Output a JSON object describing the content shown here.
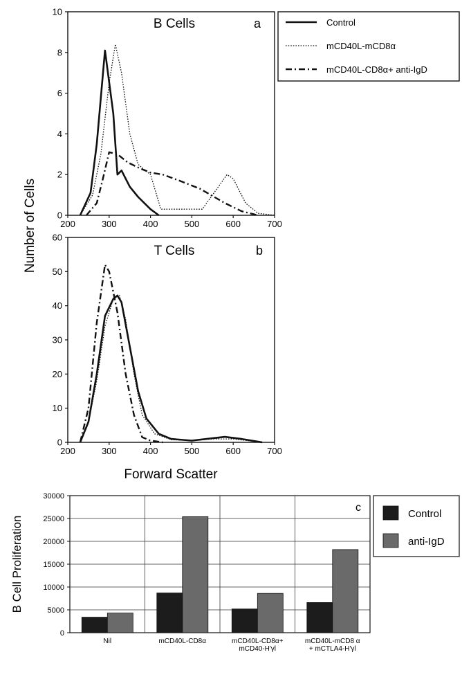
{
  "figure": {
    "shared_ylabel": "Number of Cells",
    "shared_xlabel": "Forward Scatter",
    "legend": {
      "control": "Control",
      "mcd40l_mcd8": "mCD40L-mCD8α",
      "mcd40l_cd8_antiigd": "mCD40L-CD8α+ anti-IgD"
    }
  },
  "chart_data": [
    {
      "type": "line",
      "title": "B Cells",
      "panel_letter": "a",
      "xlim": [
        200,
        700
      ],
      "ylim": [
        0,
        10
      ],
      "xticks": [
        "200",
        "300",
        "400",
        "500",
        "600",
        "700"
      ],
      "yticks": [
        "0",
        "2",
        "4",
        "6",
        "8",
        "10"
      ],
      "legend_position": "right",
      "series": [
        {
          "name": "Control",
          "style": "solid",
          "x": [
            230,
            255,
            270,
            290,
            310,
            320,
            330,
            350,
            370,
            400,
            420
          ],
          "y": [
            0,
            1.1,
            3.5,
            8.1,
            5.0,
            2.0,
            2.2,
            1.4,
            0.9,
            0.3,
            0
          ]
        },
        {
          "name": "mCD40L-mCD8α",
          "style": "dotted",
          "x": [
            230,
            260,
            280,
            300,
            315,
            330,
            350,
            370,
            400,
            425,
            450,
            500,
            525,
            550,
            585,
            600,
            630,
            660,
            700
          ],
          "y": [
            0,
            1.0,
            3.0,
            6.5,
            8.4,
            7.0,
            4.0,
            2.5,
            2.0,
            0.3,
            0.3,
            0.3,
            0.3,
            1.0,
            2.0,
            1.8,
            0.6,
            0.1,
            0
          ]
        },
        {
          "name": "mCD40L-CD8α+ anti-IgD",
          "style": "dashdot",
          "x": [
            245,
            270,
            285,
            300,
            320,
            345,
            375,
            400,
            430,
            470,
            520,
            580,
            620,
            660
          ],
          "y": [
            0,
            0.6,
            1.8,
            3.1,
            3.0,
            2.6,
            2.3,
            2.1,
            2.0,
            1.7,
            1.3,
            0.6,
            0.2,
            0
          ]
        }
      ]
    },
    {
      "type": "line",
      "title": "T Cells",
      "panel_letter": "b",
      "xlim": [
        200,
        700
      ],
      "ylim": [
        0,
        60
      ],
      "xticks": [
        "200",
        "300",
        "400",
        "500",
        "600",
        "700"
      ],
      "yticks": [
        "0",
        "10",
        "20",
        "30",
        "40",
        "50",
        "60"
      ],
      "series": [
        {
          "name": "Control",
          "style": "solid",
          "x": [
            230,
            250,
            270,
            290,
            310,
            320,
            330,
            350,
            370,
            390,
            420,
            450,
            500,
            550,
            580,
            620,
            670
          ],
          "y": [
            0,
            6,
            20,
            37,
            42,
            43,
            41,
            28,
            15,
            7,
            2.5,
            1.0,
            0.5,
            1.2,
            1.6,
            1.0,
            0
          ]
        },
        {
          "name": "mCD40L-mCD8α",
          "style": "dotted",
          "x": [
            230,
            250,
            270,
            290,
            310,
            325,
            340,
            360,
            380,
            410,
            450,
            500,
            550,
            600,
            650
          ],
          "y": [
            0,
            6,
            18,
            34,
            42,
            43,
            36,
            20,
            8,
            2.5,
            0.8,
            0.5,
            1.0,
            1.0,
            0.3
          ]
        },
        {
          "name": "mCD40L-CD8α+ anti-IgD",
          "style": "dashdot",
          "x": [
            230,
            250,
            270,
            290,
            300,
            320,
            340,
            360,
            380,
            400,
            430
          ],
          "y": [
            0,
            10,
            35,
            52,
            50,
            38,
            20,
            8,
            1.5,
            0.5,
            0
          ]
        }
      ]
    },
    {
      "type": "bar",
      "panel_letter": "c",
      "ylabel": "B Cell Proliferation",
      "ylim": [
        0,
        30000
      ],
      "yticks": [
        "0",
        "5000",
        "10000",
        "15000",
        "20000",
        "25000",
        "30000"
      ],
      "categories": [
        [
          "Nil"
        ],
        [
          "mCD40L-CD8α"
        ],
        [
          "mCD40L-CD8α+",
          "mCD40-H'γl"
        ],
        [
          "mCD40L-mCD8 α",
          "+ mCTLA4-H'γl"
        ]
      ],
      "legend_position": "right",
      "series": [
        {
          "name": "Control",
          "color": "#1c1c1c",
          "values": [
            3400,
            8700,
            5200,
            6600
          ]
        },
        {
          "name": "anti-IgD",
          "color": "#6a6a6a",
          "values": [
            4300,
            25400,
            8600,
            18200
          ]
        }
      ]
    }
  ]
}
